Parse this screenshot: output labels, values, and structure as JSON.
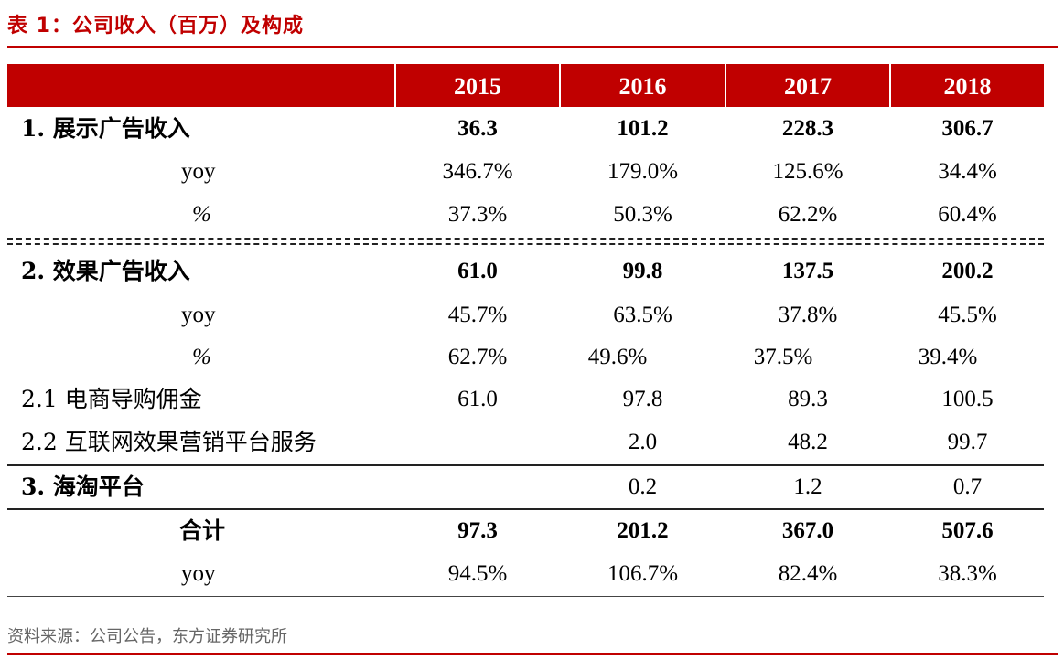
{
  "title": "表 1：公司收入（百万）及构成",
  "header": {
    "years": [
      "2015",
      "2016",
      "2017",
      "2018"
    ]
  },
  "rows": [
    {
      "label": "1. 展示广告收入",
      "values": [
        "36.3",
        "101.2",
        "228.3",
        "306.7"
      ]
    },
    {
      "label": "yoy",
      "values": [
        "346.7%",
        "179.0%",
        "125.6%",
        "34.4%"
      ]
    },
    {
      "label": "%",
      "values": [
        "37.3%",
        "50.3%",
        "62.2%",
        "60.4%"
      ]
    },
    {
      "label": "2. 效果广告收入",
      "values": [
        "61.0",
        "99.8",
        "137.5",
        "200.2"
      ]
    },
    {
      "label": "yoy",
      "values": [
        "45.7%",
        "63.5%",
        "37.8%",
        "45.5%"
      ]
    },
    {
      "label": "%",
      "values": [
        "62.7%",
        "49.6%",
        "37.5%",
        "39.4%"
      ]
    },
    {
      "label": "2.1  电商导购佣金",
      "values": [
        "61.0",
        "97.8",
        "89.3",
        "100.5"
      ]
    },
    {
      "label": "2.2 互联网效果营销平台服务",
      "values": [
        "",
        "2.0",
        "48.2",
        "99.7"
      ]
    },
    {
      "label": "3. 海淘平台",
      "values": [
        "",
        "0.2",
        "1.2",
        "0.7"
      ]
    },
    {
      "label": "合计",
      "values": [
        "97.3",
        "201.2",
        "367.0",
        "507.6"
      ]
    },
    {
      "label": "yoy",
      "values": [
        "94.5%",
        "106.7%",
        "82.4%",
        "38.3%"
      ]
    }
  ],
  "source": "资料来源：公司公告，东方证券研究所"
}
